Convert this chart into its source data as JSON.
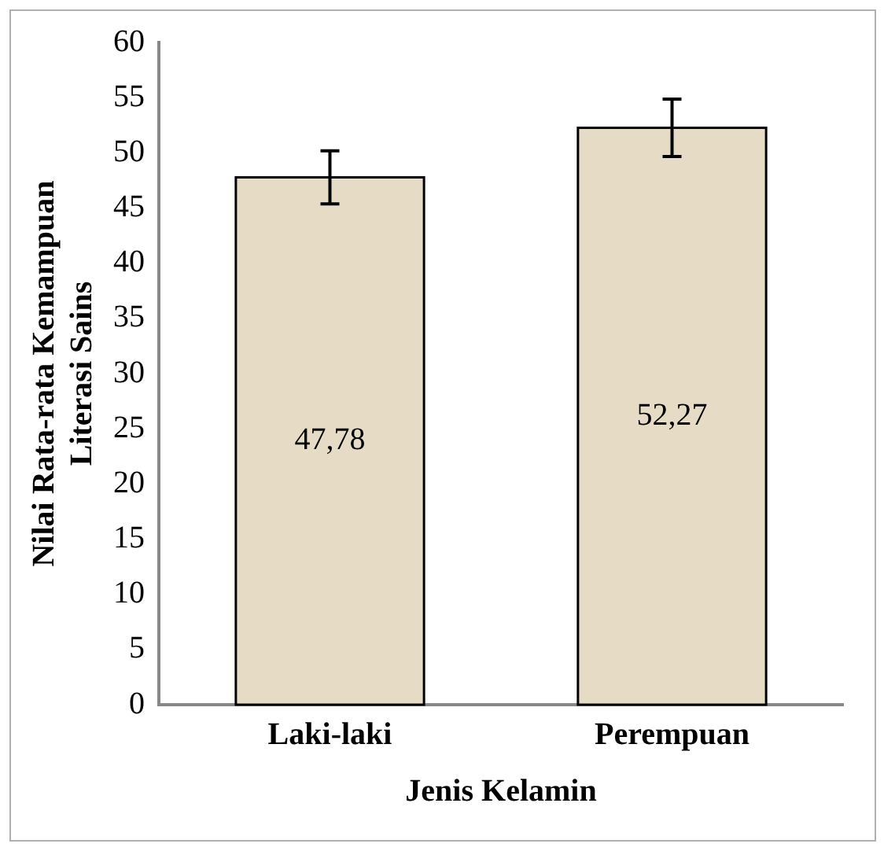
{
  "chart_data": {
    "type": "bar",
    "xlabel": "Jenis Kelamin",
    "ylabel": "Nilai Rata-rata Kemampuan Literasi Sains",
    "categories": [
      "Laki-laki",
      "Perempuan"
    ],
    "values": [
      47.78,
      52.27
    ],
    "errors": [
      2.4,
      2.6
    ],
    "value_labels": [
      "47,78",
      "52,27"
    ],
    "color": "#e6dcc6",
    "ylim": [
      0,
      60
    ],
    "yticks": [
      0,
      5,
      10,
      15,
      20,
      25,
      30,
      35,
      40,
      45,
      50,
      55,
      60
    ],
    "grid": false,
    "legend": false
  }
}
